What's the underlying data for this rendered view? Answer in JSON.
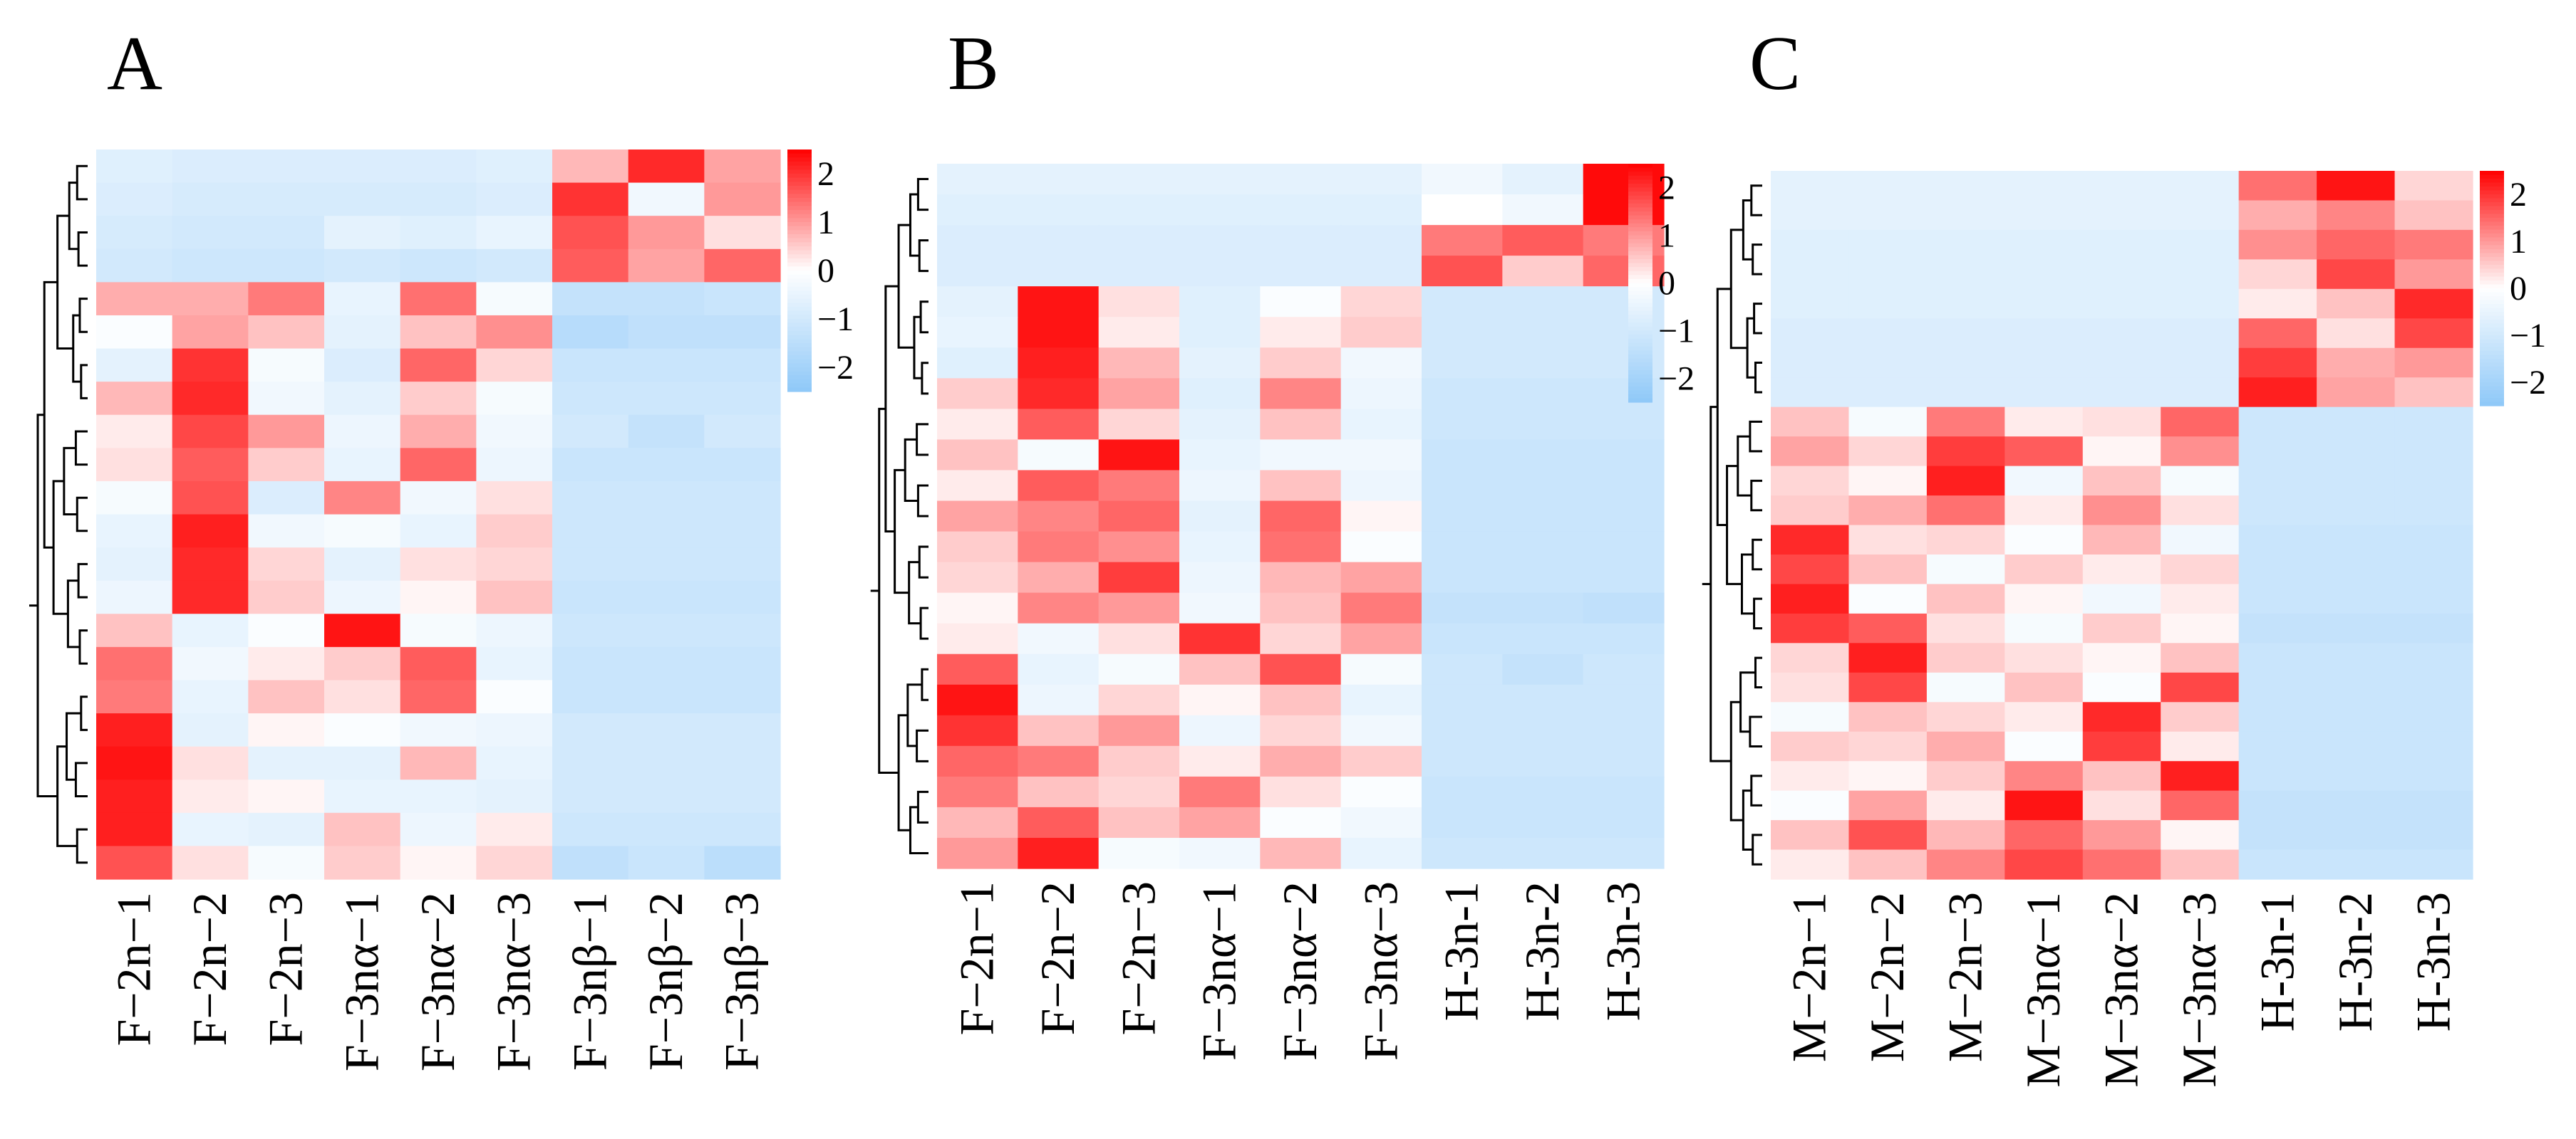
{
  "chart_data": [
    {
      "type": "heatmap",
      "panel": "A",
      "columns": [
        "F−2n−1",
        "F−2n−2",
        "F−2n−3",
        "F−3nα−1",
        "F−3nα−2",
        "F−3nα−3",
        "F−3nβ−1",
        "F−3nβ−2",
        "F−3nβ−3"
      ],
      "rows": [
        [
          -0.7,
          -0.8,
          -0.8,
          -0.8,
          -0.8,
          -0.7,
          0.7,
          2.1,
          0.9
        ],
        [
          -0.8,
          -0.9,
          -0.9,
          -0.9,
          -0.9,
          -0.8,
          2.0,
          -0.3,
          1.0
        ],
        [
          -0.9,
          -1.0,
          -1.0,
          -0.6,
          -0.7,
          -0.5,
          1.7,
          1.0,
          0.3
        ],
        [
          -1.0,
          -1.1,
          -1.1,
          -1.0,
          -1.1,
          -1.0,
          1.6,
          0.9,
          1.5
        ],
        [
          0.8,
          0.8,
          1.3,
          -0.5,
          1.4,
          -0.2,
          -1.3,
          -1.3,
          -1.2
        ],
        [
          -0.1,
          0.9,
          0.6,
          -0.6,
          0.6,
          1.1,
          -1.6,
          -1.4,
          -1.4
        ],
        [
          -0.6,
          2.0,
          -0.2,
          -0.8,
          1.5,
          0.4,
          -1.2,
          -1.2,
          -1.2
        ],
        [
          0.7,
          2.1,
          -0.3,
          -0.6,
          0.5,
          -0.2,
          -1.1,
          -1.1,
          -1.1
        ],
        [
          0.2,
          1.8,
          1.0,
          -0.4,
          0.8,
          -0.3,
          -1.0,
          -1.3,
          -1.0
        ],
        [
          0.3,
          1.6,
          0.5,
          -0.5,
          1.5,
          -0.4,
          -1.2,
          -1.2,
          -1.2
        ],
        [
          -0.2,
          1.7,
          -0.8,
          1.2,
          -0.3,
          0.3,
          -1.1,
          -1.1,
          -1.1
        ],
        [
          -0.5,
          2.2,
          -0.3,
          -0.2,
          -0.5,
          0.5,
          -1.1,
          -1.1,
          -1.1
        ],
        [
          -0.6,
          2.1,
          0.4,
          -0.6,
          0.3,
          0.4,
          -1.1,
          -1.1,
          -1.1
        ],
        [
          -0.4,
          2.1,
          0.5,
          -0.4,
          0.1,
          0.6,
          -1.2,
          -1.2,
          -1.2
        ],
        [
          0.6,
          -0.5,
          -0.1,
          2.3,
          -0.2,
          -0.4,
          -1.1,
          -1.1,
          -1.1
        ],
        [
          1.4,
          -0.3,
          0.2,
          0.5,
          1.6,
          -0.5,
          -1.2,
          -1.2,
          -1.2
        ],
        [
          1.3,
          -0.5,
          0.6,
          0.3,
          1.5,
          -0.1,
          -1.2,
          -1.2,
          -1.2
        ],
        [
          2.2,
          -0.6,
          0.1,
          -0.1,
          -0.3,
          -0.4,
          -1.0,
          -1.0,
          -1.0
        ],
        [
          2.3,
          0.3,
          -0.6,
          -0.6,
          0.7,
          -0.5,
          -1.0,
          -1.0,
          -1.0
        ],
        [
          2.2,
          0.2,
          0.1,
          -0.5,
          -0.5,
          -0.6,
          -1.0,
          -1.0,
          -1.0
        ],
        [
          2.2,
          -0.5,
          -0.6,
          0.6,
          -0.4,
          0.2,
          -1.1,
          -1.1,
          -1.1
        ],
        [
          1.7,
          0.3,
          -0.2,
          0.5,
          0.1,
          0.4,
          -1.4,
          -1.2,
          -1.5
        ]
      ]
    },
    {
      "type": "heatmap",
      "panel": "B",
      "columns": [
        "F−2n−1",
        "F−2n−2",
        "F−2n−3",
        "F−3nα−1",
        "F−3nα−2",
        "F−3nα−3",
        "H-3n-1",
        "H-3n-2",
        "H-3n-3"
      ],
      "rows": [
        [
          -0.6,
          -0.6,
          -0.6,
          -0.6,
          -0.6,
          -0.6,
          -0.3,
          -0.6,
          2.4
        ],
        [
          -0.7,
          -0.7,
          -0.7,
          -0.7,
          -0.7,
          -0.7,
          0.0,
          -0.3,
          2.4
        ],
        [
          -0.8,
          -0.8,
          -0.8,
          -0.8,
          -0.8,
          -0.8,
          1.3,
          1.6,
          1.3
        ],
        [
          -0.8,
          -0.8,
          -0.8,
          -0.8,
          -0.8,
          -0.8,
          1.7,
          0.5,
          1.5
        ],
        [
          -0.6,
          2.3,
          0.3,
          -0.7,
          -0.1,
          0.4,
          -1.0,
          -1.0,
          -1.0
        ],
        [
          -0.5,
          2.3,
          0.2,
          -0.7,
          0.2,
          0.5,
          -1.0,
          -1.0,
          -1.0
        ],
        [
          -0.7,
          2.2,
          0.7,
          -0.6,
          0.5,
          -0.3,
          -1.0,
          -1.0,
          -1.0
        ],
        [
          0.5,
          2.1,
          0.9,
          -0.7,
          1.2,
          -0.4,
          -1.1,
          -1.1,
          -1.1
        ],
        [
          0.2,
          1.6,
          0.4,
          -0.6,
          0.6,
          -0.5,
          -1.1,
          -1.1,
          -1.1
        ],
        [
          0.6,
          -0.2,
          2.3,
          -0.5,
          -0.3,
          -0.3,
          -1.2,
          -1.2,
          -1.2
        ],
        [
          0.2,
          1.6,
          1.3,
          -0.4,
          0.6,
          -0.4,
          -1.2,
          -1.2,
          -1.2
        ],
        [
          0.9,
          1.2,
          1.5,
          -0.6,
          1.5,
          0.1,
          -1.2,
          -1.2,
          -1.2
        ],
        [
          0.5,
          1.3,
          1.1,
          -0.5,
          1.4,
          -0.1,
          -1.2,
          -1.2,
          -1.2
        ],
        [
          0.4,
          0.8,
          1.9,
          -0.4,
          0.7,
          0.9,
          -1.2,
          -1.2,
          -1.2
        ],
        [
          0.1,
          1.2,
          1.0,
          -0.3,
          0.6,
          1.3,
          -1.3,
          -1.3,
          -1.4
        ],
        [
          0.2,
          -0.3,
          0.3,
          2.0,
          0.4,
          0.9,
          -1.2,
          -1.2,
          -1.2
        ],
        [
          1.6,
          -0.5,
          -0.2,
          0.6,
          1.7,
          -0.2,
          -1.1,
          -1.3,
          -1.1
        ],
        [
          2.3,
          -0.4,
          0.4,
          0.1,
          0.6,
          -0.5,
          -1.1,
          -1.1,
          -1.1
        ],
        [
          2.0,
          0.6,
          1.0,
          -0.4,
          0.4,
          -0.3,
          -1.1,
          -1.1,
          -1.1
        ],
        [
          1.5,
          1.3,
          0.5,
          0.2,
          0.8,
          0.5,
          -1.1,
          -1.1,
          -1.1
        ],
        [
          1.3,
          0.6,
          0.4,
          1.3,
          0.3,
          -0.1,
          -1.2,
          -1.2,
          -1.2
        ],
        [
          0.7,
          1.6,
          0.6,
          0.9,
          -0.1,
          -0.3,
          -1.2,
          -1.2,
          -1.2
        ],
        [
          1.0,
          2.2,
          -0.2,
          -0.3,
          0.7,
          -0.5,
          -1.1,
          -1.1,
          -1.1
        ]
      ]
    },
    {
      "type": "heatmap",
      "panel": "C",
      "columns": [
        "M−2n−1",
        "M−2n−2",
        "M−2n−3",
        "M−3nα−1",
        "M−3nα−2",
        "M−3nα−3",
        "H-3n-1",
        "H-3n-2",
        "H-3n-3"
      ],
      "rows": [
        [
          -0.6,
          -0.6,
          -0.6,
          -0.6,
          -0.6,
          -0.6,
          1.4,
          2.3,
          0.4
        ],
        [
          -0.6,
          -0.6,
          -0.6,
          -0.6,
          -0.6,
          -0.6,
          0.8,
          1.2,
          0.6
        ],
        [
          -0.7,
          -0.7,
          -0.7,
          -0.7,
          -0.7,
          -0.7,
          1.1,
          1.5,
          1.3
        ],
        [
          -0.7,
          -0.7,
          -0.7,
          -0.7,
          -0.7,
          -0.7,
          0.4,
          1.8,
          1.0
        ],
        [
          -0.7,
          -0.7,
          -0.7,
          -0.7,
          -0.7,
          -0.7,
          0.2,
          0.6,
          2.1
        ],
        [
          -0.8,
          -0.8,
          -0.8,
          -0.8,
          -0.8,
          -0.8,
          1.5,
          0.3,
          1.8
        ],
        [
          -0.8,
          -0.8,
          -0.8,
          -0.8,
          -0.8,
          -0.8,
          1.9,
          0.8,
          1.0
        ],
        [
          -0.8,
          -0.8,
          -0.8,
          -0.8,
          -0.8,
          -0.8,
          2.2,
          0.9,
          0.6
        ],
        [
          0.6,
          -0.2,
          1.3,
          0.2,
          0.3,
          1.5,
          -1.1,
          -1.1,
          -1.1
        ],
        [
          0.9,
          0.4,
          1.9,
          1.6,
          0.1,
          1.1,
          -1.1,
          -1.1,
          -1.1
        ],
        [
          0.4,
          0.1,
          2.2,
          -0.3,
          0.6,
          -0.2,
          -1.1,
          -1.1,
          -1.1
        ],
        [
          0.5,
          0.8,
          1.4,
          0.2,
          1.1,
          0.3,
          -1.1,
          -1.1,
          -1.1
        ],
        [
          2.1,
          0.3,
          0.4,
          -0.1,
          0.7,
          -0.3,
          -1.2,
          -1.2,
          -1.2
        ],
        [
          1.8,
          0.6,
          -0.2,
          0.5,
          0.2,
          0.4,
          -1.2,
          -1.2,
          -1.2
        ],
        [
          2.2,
          -0.1,
          0.6,
          0.1,
          -0.3,
          0.2,
          -1.2,
          -1.2,
          -1.2
        ],
        [
          1.9,
          1.6,
          0.3,
          -0.2,
          0.5,
          0.1,
          -1.3,
          -1.3,
          -1.3
        ],
        [
          0.4,
          2.2,
          0.5,
          0.3,
          0.1,
          0.6,
          -1.2,
          -1.2,
          -1.2
        ],
        [
          0.3,
          1.8,
          -0.2,
          0.6,
          -0.1,
          1.8,
          -1.2,
          -1.2,
          -1.2
        ],
        [
          -0.2,
          0.6,
          0.4,
          0.2,
          2.1,
          0.5,
          -1.2,
          -1.2,
          -1.2
        ],
        [
          0.5,
          0.4,
          0.8,
          -0.1,
          1.9,
          0.2,
          -1.2,
          -1.2,
          -1.2
        ],
        [
          0.2,
          0.1,
          0.5,
          1.2,
          0.6,
          2.2,
          -1.2,
          -1.2,
          -1.2
        ],
        [
          -0.1,
          0.9,
          0.2,
          2.3,
          0.3,
          1.5,
          -1.3,
          -1.3,
          -1.3
        ],
        [
          0.6,
          1.7,
          0.7,
          1.5,
          1.0,
          0.1,
          -1.3,
          -1.3,
          -1.3
        ],
        [
          0.2,
          0.6,
          1.2,
          1.8,
          1.4,
          0.6,
          -1.2,
          -1.2,
          -1.2
        ]
      ]
    }
  ],
  "legend": {
    "ticks": [
      {
        "value": 2,
        "label": "2"
      },
      {
        "value": 1,
        "label": "1"
      },
      {
        "value": 0,
        "label": "0"
      },
      {
        "value": -1,
        "label": "−1"
      },
      {
        "value": -2,
        "label": "−2"
      }
    ],
    "range": [
      -2.5,
      2.5
    ]
  },
  "colors": {
    "high": "#ff0000",
    "mid": "#ffffff",
    "low": "#8ec8f8",
    "line": "#000000"
  }
}
